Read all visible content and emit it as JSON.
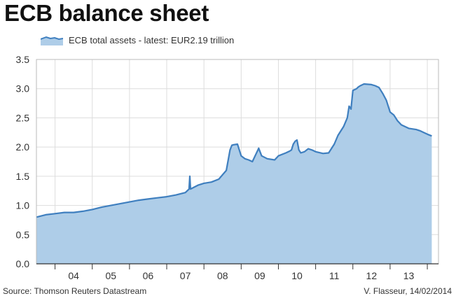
{
  "title": "ECB balance sheet",
  "footer": {
    "source": "Source: Thomson Reuters Datastream",
    "credit": "V. Flasseur, 14/02/2014"
  },
  "colors": {
    "line": "#3f7fbf",
    "fill": "#aecde8",
    "grid": "#dddddd",
    "axis": "#333333"
  },
  "chart_data": {
    "type": "area",
    "title": "ECB balance sheet",
    "xlabel": "",
    "ylabel": "",
    "ylim": [
      0,
      3.5
    ],
    "xlim": [
      2003.5,
      2014.3
    ],
    "y_ticks": [
      "0.0",
      "0.5",
      "1.0",
      "1.5",
      "2.0",
      "2.5",
      "3.0",
      "3.5"
    ],
    "x_tick_labels": [
      "04",
      "05",
      "06",
      "07",
      "08",
      "09",
      "10",
      "11",
      "12",
      "13"
    ],
    "grid": true,
    "legend_position": "top-left",
    "series": [
      {
        "name": "ECB total assets - latest: EUR2.19 trillion",
        "x": [
          2003.5,
          2003.75,
          2004.0,
          2004.25,
          2004.5,
          2004.75,
          2005.0,
          2005.25,
          2005.5,
          2005.75,
          2006.0,
          2006.25,
          2006.5,
          2006.75,
          2007.0,
          2007.25,
          2007.5,
          2007.6,
          2007.62,
          2007.64,
          2007.7,
          2007.85,
          2008.0,
          2008.2,
          2008.4,
          2008.6,
          2008.7,
          2008.75,
          2008.8,
          2008.9,
          2009.0,
          2009.1,
          2009.2,
          2009.3,
          2009.45,
          2009.47,
          2009.55,
          2009.7,
          2009.9,
          2010.0,
          2010.2,
          2010.3,
          2010.35,
          2010.4,
          2010.45,
          2010.5,
          2010.55,
          2010.6,
          2010.7,
          2010.8,
          2010.9,
          2011.0,
          2011.2,
          2011.35,
          2011.5,
          2011.6,
          2011.75,
          2011.85,
          2011.9,
          2011.95,
          2012.0,
          2012.1,
          2012.15,
          2012.2,
          2012.3,
          2012.5,
          2012.6,
          2012.7,
          2012.8,
          2012.9,
          2013.0,
          2013.1,
          2013.2,
          2013.3,
          2013.5,
          2013.7,
          2013.8,
          2013.9,
          2014.0,
          2014.12
        ],
        "values": [
          0.8,
          0.84,
          0.86,
          0.88,
          0.88,
          0.9,
          0.93,
          0.97,
          1.0,
          1.03,
          1.06,
          1.09,
          1.11,
          1.13,
          1.15,
          1.18,
          1.22,
          1.28,
          1.5,
          1.28,
          1.3,
          1.35,
          1.38,
          1.4,
          1.45,
          1.6,
          1.95,
          2.03,
          2.04,
          2.05,
          1.85,
          1.8,
          1.78,
          1.75,
          1.95,
          1.98,
          1.85,
          1.8,
          1.78,
          1.85,
          1.9,
          1.93,
          1.95,
          2.05,
          2.1,
          2.12,
          1.95,
          1.9,
          1.92,
          1.97,
          1.95,
          1.92,
          1.89,
          1.9,
          2.05,
          2.2,
          2.35,
          2.5,
          2.7,
          2.65,
          2.97,
          3.0,
          3.03,
          3.05,
          3.08,
          3.07,
          3.05,
          3.02,
          2.92,
          2.8,
          2.6,
          2.55,
          2.45,
          2.38,
          2.32,
          2.3,
          2.28,
          2.25,
          2.22,
          2.19
        ]
      }
    ]
  }
}
